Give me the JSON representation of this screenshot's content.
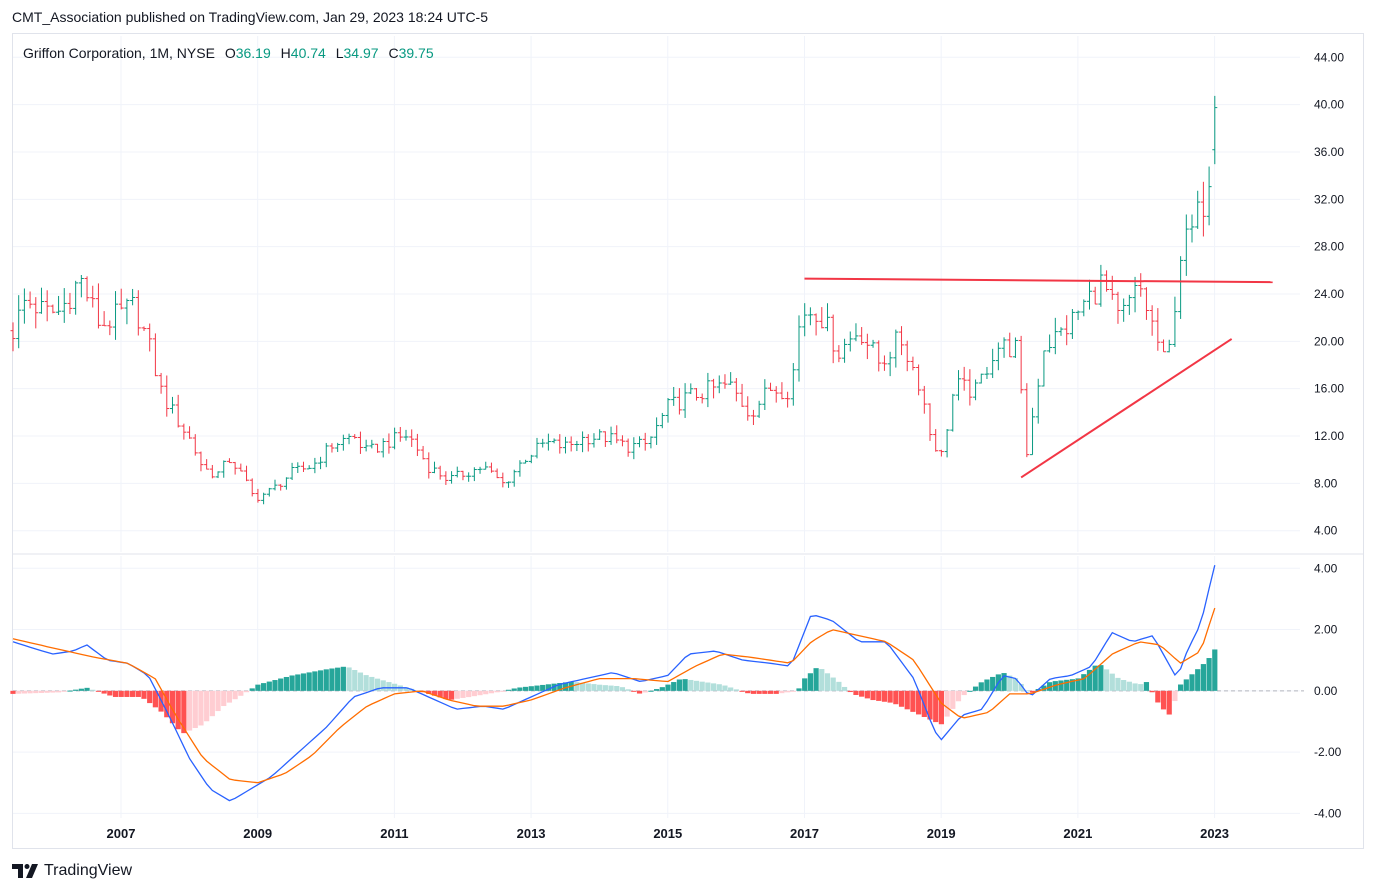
{
  "publisher_line": "CMT_Association published on TradingView.com, Jan 29, 2023 18:24 UTC-5",
  "legend": {
    "symbol": "Griffon Corporation, 1M, NYSE",
    "o_label": "O",
    "o_value": "36.19",
    "h_label": "H",
    "h_value": "40.74",
    "l_label": "L",
    "l_value": "34.97",
    "c_label": "C",
    "c_value": "39.75"
  },
  "footer": {
    "brand": "TradingView",
    "icon": "tradingview-logo-icon"
  },
  "colors": {
    "up": "#089981",
    "down": "#f23645",
    "grid": "#f0f3fa",
    "trendline": "#f23645",
    "macd_line": "#2962ff",
    "signal_line": "#ff6d00",
    "hist_up_strong": "#26a69a",
    "hist_up_weak": "#b2dfdb",
    "hist_down_strong": "#ff5252",
    "hist_down_weak": "#ffcdd2"
  },
  "chart_data": [
    {
      "type": "ohlc",
      "title": "Griffon Corporation, 1M, NYSE",
      "x_ticks": [
        "2007",
        "2009",
        "2011",
        "2013",
        "2015",
        "2017",
        "2019",
        "2021",
        "2023"
      ],
      "y_ticks": [
        "4.00",
        "8.00",
        "12.00",
        "16.00",
        "20.00",
        "24.00",
        "28.00",
        "32.00",
        "36.00",
        "40.00",
        "44.00"
      ],
      "ylim": [
        2.2,
        45.8
      ],
      "xlim": [
        2005.42,
        2024.25
      ],
      "anchors": [
        [
          2005.42,
          20.9
        ],
        [
          2005.6,
          23.5
        ],
        [
          2005.9,
          22.4
        ],
        [
          2006.1,
          22.5
        ],
        [
          2006.4,
          25.3
        ],
        [
          2006.7,
          21.3
        ],
        [
          2006.9,
          22.0
        ],
        [
          2007.2,
          23.0
        ],
        [
          2007.4,
          19.8
        ],
        [
          2007.6,
          15.5
        ],
        [
          2007.8,
          13.6
        ],
        [
          2008.0,
          11.8
        ],
        [
          2008.2,
          9.3
        ],
        [
          2008.4,
          8.7
        ],
        [
          2008.6,
          10.1
        ],
        [
          2008.8,
          8.4
        ],
        [
          2008.95,
          6.7
        ],
        [
          2009.2,
          7.4
        ],
        [
          2009.5,
          8.9
        ],
        [
          2009.8,
          9.5
        ],
        [
          2010.1,
          11.3
        ],
        [
          2010.4,
          12.0
        ],
        [
          2010.6,
          10.6
        ],
        [
          2010.9,
          11.5
        ],
        [
          2011.2,
          12.1
        ],
        [
          2011.5,
          9.4
        ],
        [
          2011.8,
          8.3
        ],
        [
          2012.0,
          8.8
        ],
        [
          2012.3,
          9.4
        ],
        [
          2012.6,
          7.9
        ],
        [
          2012.9,
          10.1
        ],
        [
          2013.2,
          11.4
        ],
        [
          2013.5,
          11.1
        ],
        [
          2013.8,
          11.9
        ],
        [
          2014.1,
          11.9
        ],
        [
          2014.4,
          11.1
        ],
        [
          2014.7,
          11.3
        ],
        [
          2015.0,
          14.4
        ],
        [
          2015.3,
          15.3
        ],
        [
          2015.6,
          15.9
        ],
        [
          2015.9,
          16.3
        ],
        [
          2016.2,
          13.9
        ],
        [
          2016.5,
          16.0
        ],
        [
          2016.8,
          15.9
        ],
        [
          2016.95,
          22.5
        ],
        [
          2017.2,
          22.7
        ],
        [
          2017.5,
          19.1
        ],
        [
          2017.8,
          21.1
        ],
        [
          2018.1,
          18.1
        ],
        [
          2018.4,
          20.3
        ],
        [
          2018.7,
          16.2
        ],
        [
          2018.85,
          11.9
        ],
        [
          2019.0,
          10.3
        ],
        [
          2019.2,
          16.3
        ],
        [
          2019.5,
          15.7
        ],
        [
          2019.8,
          19.6
        ],
        [
          2020.1,
          19.4
        ],
        [
          2020.25,
          10.5
        ],
        [
          2020.5,
          19.6
        ],
        [
          2020.8,
          20.9
        ],
        [
          2021.1,
          23.2
        ],
        [
          2021.35,
          25.0
        ],
        [
          2021.6,
          21.7
        ],
        [
          2021.9,
          24.6
        ],
        [
          2022.1,
          21.2
        ],
        [
          2022.3,
          17.5
        ],
        [
          2022.5,
          27.4
        ],
        [
          2022.7,
          29.6
        ],
        [
          2022.9,
          33.0
        ],
        [
          2023.0,
          39.75
        ]
      ],
      "trendlines": [
        {
          "from": [
            2017.0,
            25.3
          ],
          "to": [
            2023.85,
            25.0
          ]
        },
        {
          "from": [
            2020.17,
            8.5
          ],
          "to": [
            2023.25,
            20.2
          ]
        }
      ]
    },
    {
      "type": "macd",
      "y_ticks": [
        "-4.00",
        "-2.00",
        "0.00",
        "2.00",
        "4.00"
      ],
      "ylim": [
        -4.15,
        4.4
      ],
      "series": [
        {
          "role": "macd",
          "anchors": [
            [
              2005.42,
              1.6
            ],
            [
              2005.7,
              1.4
            ],
            [
              2006.0,
              1.2
            ],
            [
              2006.3,
              1.3
            ],
            [
              2006.5,
              1.5
            ],
            [
              2006.8,
              1.0
            ],
            [
              2007.1,
              0.9
            ],
            [
              2007.4,
              0.5
            ],
            [
              2007.7,
              -0.8
            ],
            [
              2008.0,
              -2.2
            ],
            [
              2008.3,
              -3.2
            ],
            [
              2008.6,
              -3.6
            ],
            [
              2008.9,
              -3.2
            ],
            [
              2009.2,
              -2.8
            ],
            [
              2009.6,
              -2.0
            ],
            [
              2010.0,
              -1.2
            ],
            [
              2010.4,
              -0.2
            ],
            [
              2010.8,
              0.1
            ],
            [
              2011.2,
              0.1
            ],
            [
              2011.5,
              -0.2
            ],
            [
              2011.9,
              -0.6
            ],
            [
              2012.3,
              -0.5
            ],
            [
              2012.6,
              -0.6
            ],
            [
              2013.0,
              -0.2
            ],
            [
              2013.4,
              0.2
            ],
            [
              2013.8,
              0.4
            ],
            [
              2014.2,
              0.6
            ],
            [
              2014.6,
              0.3
            ],
            [
              2015.0,
              0.5
            ],
            [
              2015.3,
              1.2
            ],
            [
              2015.7,
              1.3
            ],
            [
              2016.1,
              1.0
            ],
            [
              2016.5,
              0.9
            ],
            [
              2016.8,
              0.8
            ],
            [
              2017.1,
              2.5
            ],
            [
              2017.4,
              2.3
            ],
            [
              2017.8,
              1.6
            ],
            [
              2018.2,
              1.6
            ],
            [
              2018.6,
              0.4
            ],
            [
              2018.9,
              -1.3
            ],
            [
              2019.0,
              -1.6
            ],
            [
              2019.3,
              -0.8
            ],
            [
              2019.6,
              -0.6
            ],
            [
              2019.9,
              0.5
            ],
            [
              2020.1,
              0.4
            ],
            [
              2020.3,
              -0.2
            ],
            [
              2020.6,
              0.4
            ],
            [
              2020.9,
              0.5
            ],
            [
              2021.2,
              0.8
            ],
            [
              2021.5,
              1.9
            ],
            [
              2021.8,
              1.6
            ],
            [
              2022.1,
              1.8
            ],
            [
              2022.3,
              1.0
            ],
            [
              2022.45,
              0.4
            ],
            [
              2022.6,
              1.3
            ],
            [
              2022.8,
              2.2
            ],
            [
              2023.0,
              4.1
            ]
          ]
        },
        {
          "role": "signal",
          "anchors": [
            [
              2005.42,
              1.7
            ],
            [
              2006.0,
              1.4
            ],
            [
              2006.6,
              1.1
            ],
            [
              2007.1,
              0.9
            ],
            [
              2007.5,
              0.4
            ],
            [
              2007.8,
              -0.8
            ],
            [
              2008.2,
              -2.2
            ],
            [
              2008.6,
              -2.9
            ],
            [
              2009.0,
              -3.0
            ],
            [
              2009.4,
              -2.7
            ],
            [
              2009.8,
              -2.1
            ],
            [
              2010.2,
              -1.2
            ],
            [
              2010.6,
              -0.5
            ],
            [
              2011.0,
              -0.1
            ],
            [
              2011.4,
              0.0
            ],
            [
              2011.8,
              -0.3
            ],
            [
              2012.2,
              -0.5
            ],
            [
              2012.6,
              -0.5
            ],
            [
              2013.0,
              -0.3
            ],
            [
              2013.5,
              0.1
            ],
            [
              2014.0,
              0.4
            ],
            [
              2014.5,
              0.4
            ],
            [
              2015.0,
              0.3
            ],
            [
              2015.4,
              0.8
            ],
            [
              2015.8,
              1.2
            ],
            [
              2016.2,
              1.1
            ],
            [
              2016.8,
              0.9
            ],
            [
              2017.1,
              1.6
            ],
            [
              2017.4,
              2.0
            ],
            [
              2017.8,
              1.8
            ],
            [
              2018.2,
              1.6
            ],
            [
              2018.6,
              1.0
            ],
            [
              2019.0,
              -0.4
            ],
            [
              2019.3,
              -0.9
            ],
            [
              2019.7,
              -0.7
            ],
            [
              2020.0,
              -0.1
            ],
            [
              2020.3,
              -0.1
            ],
            [
              2020.7,
              0.2
            ],
            [
              2021.1,
              0.4
            ],
            [
              2021.5,
              1.2
            ],
            [
              2021.9,
              1.6
            ],
            [
              2022.2,
              1.5
            ],
            [
              2022.5,
              0.9
            ],
            [
              2022.8,
              1.3
            ],
            [
              2023.0,
              2.7
            ]
          ]
        }
      ],
      "histogram_anchors": [
        [
          2005.42,
          -0.1
        ],
        [
          2006.1,
          -0.05
        ],
        [
          2006.5,
          0.1
        ],
        [
          2006.9,
          -0.2
        ],
        [
          2007.3,
          -0.2
        ],
        [
          2007.6,
          -0.7
        ],
        [
          2007.9,
          -1.4
        ],
        [
          2008.2,
          -1.1
        ],
        [
          2008.5,
          -0.5
        ],
        [
          2008.8,
          -0.1
        ],
        [
          2009.0,
          0.2
        ],
        [
          2009.5,
          0.5
        ],
        [
          2010.0,
          0.7
        ],
        [
          2010.3,
          0.8
        ],
        [
          2010.6,
          0.5
        ],
        [
          2010.9,
          0.3
        ],
        [
          2011.2,
          0.1
        ],
        [
          2011.5,
          -0.1
        ],
        [
          2011.8,
          -0.3
        ],
        [
          2012.1,
          -0.2
        ],
        [
          2012.5,
          -0.05
        ],
        [
          2012.8,
          0.1
        ],
        [
          2013.2,
          0.2
        ],
        [
          2013.6,
          0.3
        ],
        [
          2014.0,
          0.2
        ],
        [
          2014.3,
          0.15
        ],
        [
          2014.6,
          -0.1
        ],
        [
          2014.9,
          0.1
        ],
        [
          2015.2,
          0.4
        ],
        [
          2015.5,
          0.3
        ],
        [
          2015.8,
          0.2
        ],
        [
          2016.2,
          -0.1
        ],
        [
          2016.6,
          -0.1
        ],
        [
          2016.9,
          0.0
        ],
        [
          2017.0,
          0.4
        ],
        [
          2017.2,
          0.8
        ],
        [
          2017.5,
          0.3
        ],
        [
          2017.7,
          -0.1
        ],
        [
          2018.0,
          -0.3
        ],
        [
          2018.3,
          -0.4
        ],
        [
          2018.6,
          -0.7
        ],
        [
          2018.9,
          -1.0
        ],
        [
          2019.0,
          -1.1
        ],
        [
          2019.3,
          -0.2
        ],
        [
          2019.6,
          0.3
        ],
        [
          2019.9,
          0.6
        ],
        [
          2020.1,
          0.4
        ],
        [
          2020.3,
          -0.1
        ],
        [
          2020.6,
          0.3
        ],
        [
          2021.0,
          0.4
        ],
        [
          2021.3,
          0.9
        ],
        [
          2021.6,
          0.4
        ],
        [
          2021.9,
          0.2
        ],
        [
          2022.0,
          0.3
        ],
        [
          2022.2,
          -0.5
        ],
        [
          2022.35,
          -0.8
        ],
        [
          2022.5,
          0.2
        ],
        [
          2022.7,
          0.6
        ],
        [
          2022.9,
          1.0
        ],
        [
          2023.0,
          1.35
        ]
      ]
    }
  ]
}
